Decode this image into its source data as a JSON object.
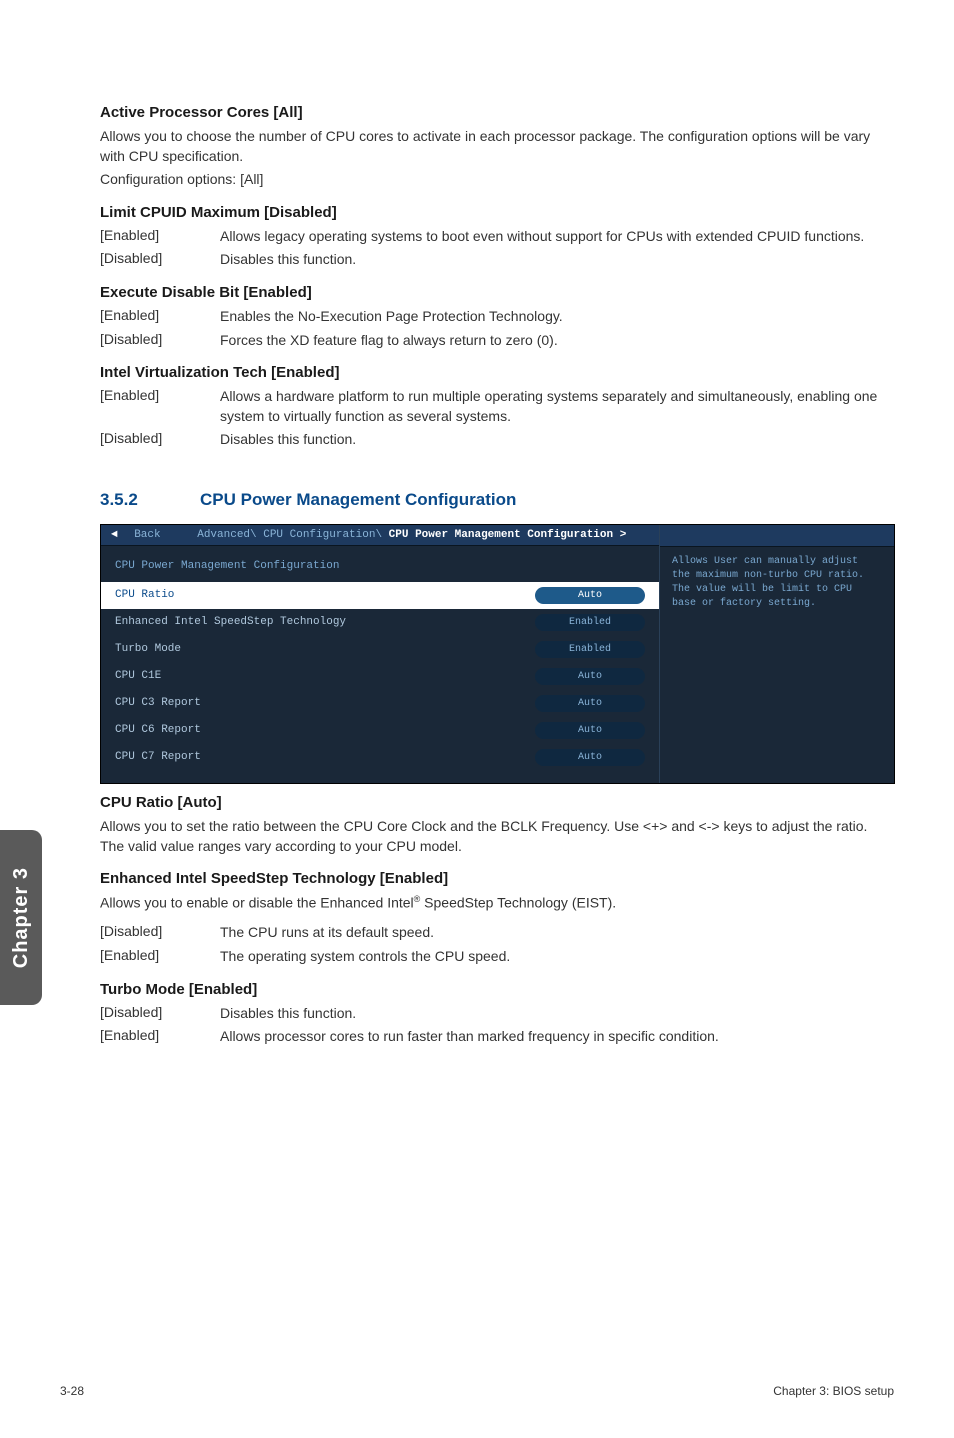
{
  "section1": {
    "heading": "Active Processor Cores [All]",
    "para1": "Allows you to choose the number of CPU cores to activate in each processor package. The configuration options will be vary with CPU specification.",
    "para2": "Configuration options: [All]"
  },
  "section2": {
    "heading": "Limit CPUID Maximum [Disabled]",
    "rows": [
      {
        "term": "[Enabled]",
        "desc": "Allows legacy operating systems to boot even without support for CPUs with extended CPUID functions."
      },
      {
        "term": "[Disabled]",
        "desc": "Disables this function."
      }
    ]
  },
  "section3": {
    "heading": "Execute Disable Bit [Enabled]",
    "rows": [
      {
        "term": "[Enabled]",
        "desc": "Enables the No-Execution Page Protection Technology."
      },
      {
        "term": "[Disabled]",
        "desc": "Forces the XD feature flag to always return to zero (0)."
      }
    ]
  },
  "section4": {
    "heading": "Intel Virtualization Tech [Enabled]",
    "rows": [
      {
        "term": "[Enabled]",
        "desc": "Allows a hardware platform to run multiple operating systems separately and simultaneously, enabling one system to virtually function as several systems."
      },
      {
        "term": "[Disabled]",
        "desc": "Disables this function."
      }
    ]
  },
  "numbered": {
    "num": "3.5.2",
    "title": "CPU Power Management Configuration"
  },
  "bios": {
    "back": "Back",
    "breadcrumb_prefix": "Advanced\\ CPU Configuration\\",
    "breadcrumb_current": " CPU Power Management Configuration >",
    "panel_title": "CPU Power Management Configuration",
    "rows": [
      {
        "label": "CPU Ratio",
        "value": "Auto",
        "selected": true
      },
      {
        "label": "Enhanced Intel SpeedStep Technology",
        "value": "Enabled",
        "selected": false
      },
      {
        "label": "Turbo Mode",
        "value": "Enabled",
        "selected": false
      },
      {
        "label": "CPU C1E",
        "value": "Auto",
        "selected": false
      },
      {
        "label": "CPU C3 Report",
        "value": "Auto",
        "selected": false
      },
      {
        "label": "CPU C6 Report",
        "value": "Auto",
        "selected": false
      },
      {
        "label": "CPU C7 Report",
        "value": "Auto",
        "selected": false
      }
    ],
    "help_text": "Allows User can manually adjust the maximum non-turbo CPU ratio. The value will be limit to CPU base or factory setting."
  },
  "section5": {
    "heading": "CPU Ratio [Auto]",
    "para": "Allows you to set the ratio between the CPU Core Clock and the BCLK Frequency. Use <+> and <-> keys to adjust the ratio. The valid value ranges vary according to your CPU model."
  },
  "section6": {
    "heading": "Enhanced Intel SpeedStep Technology [Enabled]",
    "para_prefix": "Allows you to enable or disable the Enhanced Intel",
    "para_suffix": " SpeedStep Technology (EIST).",
    "rows": [
      {
        "term": "[Disabled]",
        "desc": "The CPU runs at its default speed."
      },
      {
        "term": "[Enabled]",
        "desc": "The operating system controls the CPU speed."
      }
    ]
  },
  "section7": {
    "heading": "Turbo Mode [Enabled]",
    "rows": [
      {
        "term": "[Disabled]",
        "desc": "Disables this function."
      },
      {
        "term": "[Enabled]",
        "desc": "Allows processor cores to run faster than marked frequency in specific condition."
      }
    ]
  },
  "sidetab": "Chapter 3",
  "footer": {
    "left": "3-28",
    "right": "Chapter 3: BIOS setup"
  },
  "colors": {
    "heading_blue": "#0a4a8a",
    "bios_bg": "#1a2838",
    "bios_tab": "#1e3a5f",
    "bios_text": "#7aa8d0",
    "sidetab_bg": "#5a5a5a"
  }
}
